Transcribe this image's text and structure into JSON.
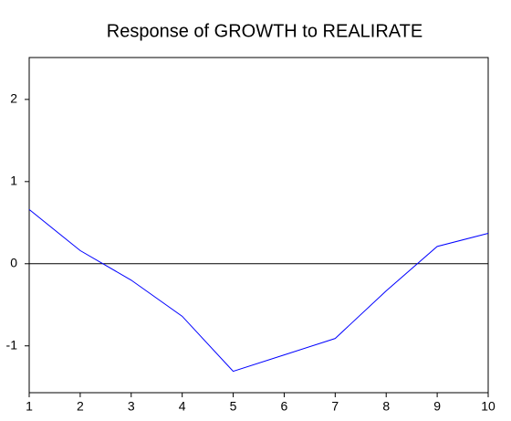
{
  "chart_data": {
    "type": "line",
    "title": "Response of GROWTH to REALIRATE",
    "x": [
      1,
      2,
      3,
      4,
      5,
      6,
      7,
      8,
      9,
      10
    ],
    "series": [
      {
        "name": "GROWTH",
        "color": "#0000ff",
        "values": [
          0.66,
          0.16,
          -0.2,
          -0.64,
          -1.31,
          -1.11,
          -0.91,
          -0.33,
          0.21,
          0.37
        ]
      }
    ],
    "xlim": [
      1,
      10
    ],
    "xticks": [
      1,
      2,
      3,
      4,
      5,
      6,
      7,
      8,
      9,
      10
    ],
    "ylim": [
      -1.57,
      2.51
    ],
    "yticks": [
      -1,
      0,
      1,
      2
    ],
    "zero_line": true
  }
}
